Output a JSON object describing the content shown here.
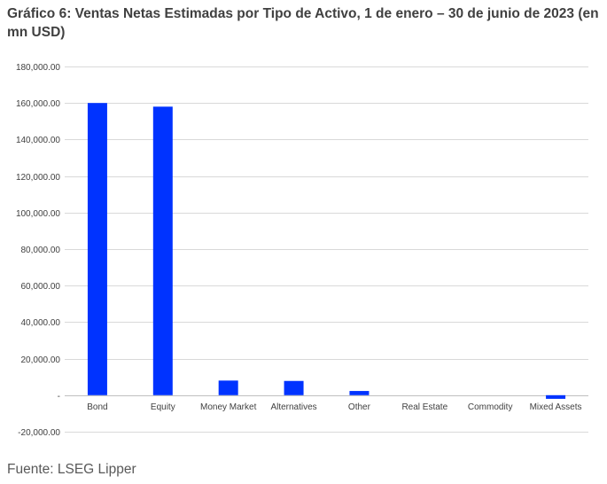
{
  "chart_title": "Gráfico 6: Ventas Netas Estimadas por Tipo de Activo, 1 de enero – 30 de junio de 2023 (en mn USD)",
  "source": "Fuente: LSEG Lipper",
  "colors": {
    "bar": "#0033ff",
    "grid": "#d9d9d9",
    "text": "#404040"
  },
  "chart_data": {
    "type": "bar",
    "title": "Gráfico 6: Ventas Netas Estimadas por Tipo de Activo, 1 de enero – 30 de junio de 2023 (en mn USD)",
    "categories": [
      "Bond",
      "Equity",
      "Money Market",
      "Alternatives",
      "Other",
      "Real Estate",
      "Commodity",
      "Mixed Assets"
    ],
    "values": [
      160000,
      158000,
      8000,
      7800,
      2300,
      0,
      0,
      -2000
    ],
    "ylim": [
      -20000,
      180000
    ],
    "yticks": [
      180000,
      160000,
      140000,
      120000,
      100000,
      80000,
      60000,
      40000,
      20000,
      0,
      -20000
    ],
    "ytick_labels": [
      "180,000.00",
      "160,000.00",
      "140,000.00",
      "120,000.00",
      "100,000.00",
      "80,000.00",
      "60,000.00",
      "40,000.00",
      "20,000.00",
      "-",
      "-20,000.00"
    ],
    "grid": true,
    "legend": "none"
  }
}
